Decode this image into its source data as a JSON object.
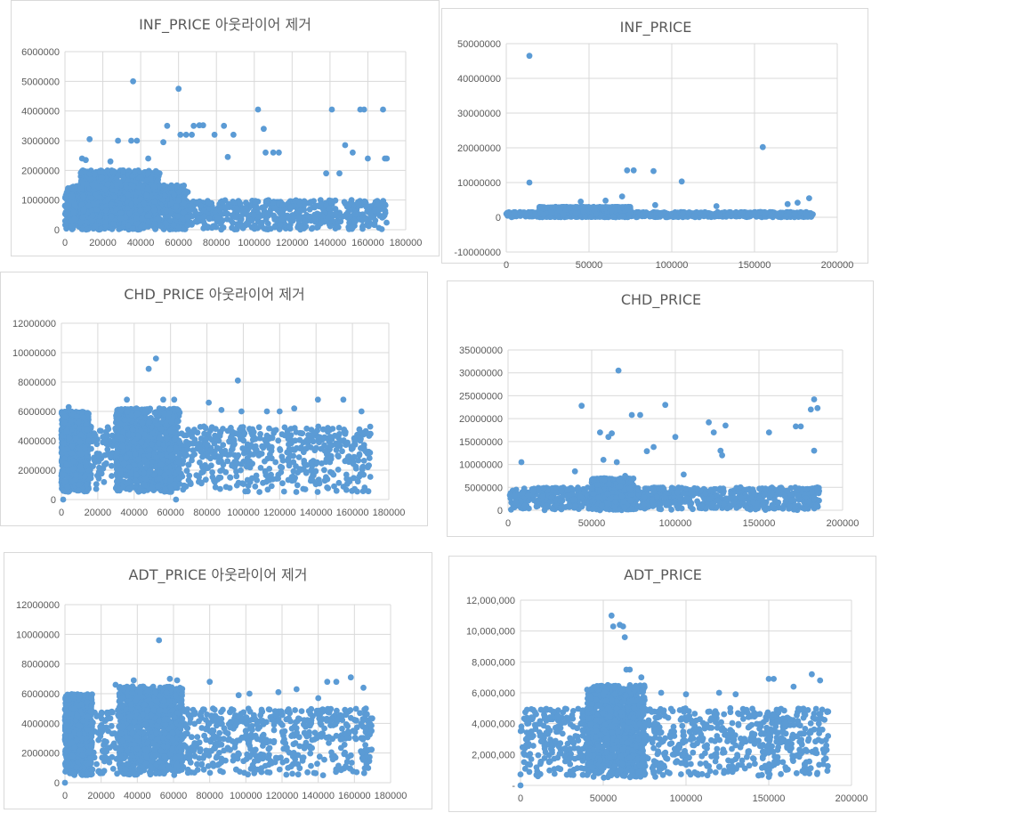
{
  "colors": {
    "marker": "#5b9bd5",
    "grid": "#d9d9d9",
    "text": "#595959",
    "border": "#d9d9d9"
  },
  "chart_data": [
    {
      "id": "inf-out",
      "type": "scatter",
      "title": "INF_PRICE 아웃라이어 제거",
      "grid": "vertical and horizontal",
      "xlim": [
        0,
        180000
      ],
      "ylim": [
        0,
        6000000
      ],
      "xticks": [
        0,
        20000,
        40000,
        60000,
        80000,
        100000,
        120000,
        140000,
        160000,
        180000
      ],
      "yticks": [
        0,
        1000000,
        2000000,
        3000000,
        4000000,
        5000000,
        6000000
      ],
      "xtick_labels": [
        "0",
        "20000",
        "40000",
        "60000",
        "80000",
        "100000",
        "120000",
        "140000",
        "160000",
        "180000"
      ],
      "ytick_labels": [
        "0",
        "1000000",
        "2000000",
        "3000000",
        "4000000",
        "5000000",
        "6000000"
      ],
      "x_max_data": 170000,
      "dense_bands": [
        {
          "x": [
            0,
            170000
          ],
          "y": [
            0,
            1000000
          ]
        },
        {
          "x": [
            0,
            65000
          ],
          "y": [
            0,
            1500000
          ]
        },
        {
          "x": [
            8000,
            50000
          ],
          "y": [
            0,
            2000000
          ]
        }
      ],
      "outliers": [
        [
          36000,
          5000000
        ],
        [
          60000,
          4750000
        ],
        [
          102000,
          4050000
        ],
        [
          141000,
          4050000
        ],
        [
          156000,
          4050000
        ],
        [
          158000,
          4050000
        ],
        [
          168000,
          4050000
        ],
        [
          105000,
          3400000
        ],
        [
          54000,
          3500000
        ],
        [
          68000,
          3500000
        ],
        [
          71000,
          3520000
        ],
        [
          73000,
          3520000
        ],
        [
          84000,
          3500000
        ],
        [
          13000,
          3050000
        ],
        [
          28000,
          3000000
        ],
        [
          35000,
          3000000
        ],
        [
          38000,
          3000000
        ],
        [
          52000,
          2950000
        ],
        [
          61000,
          3200000
        ],
        [
          64000,
          3200000
        ],
        [
          67000,
          3200000
        ],
        [
          79000,
          3200000
        ],
        [
          89000,
          3200000
        ],
        [
          148000,
          2850000
        ],
        [
          160000,
          2400000
        ],
        [
          9000,
          2400000
        ],
        [
          11000,
          2350000
        ],
        [
          24000,
          2300000
        ],
        [
          44000,
          2400000
        ],
        [
          86000,
          2450000
        ],
        [
          106000,
          2600000
        ],
        [
          110000,
          2600000
        ],
        [
          113000,
          2600000
        ],
        [
          152000,
          2600000
        ],
        [
          138000,
          1900000
        ],
        [
          145000,
          1900000
        ],
        [
          169000,
          2400000
        ],
        [
          170000,
          2400000
        ]
      ]
    },
    {
      "id": "inf-raw",
      "type": "scatter",
      "title": "INF_PRICE",
      "grid": "vertical and horizontal",
      "xlim": [
        0,
        200000
      ],
      "ylim": [
        -10000000,
        50000000
      ],
      "xticks": [
        0,
        50000,
        100000,
        150000,
        200000
      ],
      "yticks": [
        -10000000,
        0,
        10000000,
        20000000,
        30000000,
        40000000,
        50000000
      ],
      "xtick_labels": [
        "0",
        "50000",
        "100000",
        "150000",
        "200000"
      ],
      "ytick_labels": [
        "-10000000",
        "0",
        "10000000",
        "20000000",
        "30000000",
        "40000000",
        "50000000"
      ],
      "x_max_data": 186000,
      "dense_bands": [
        {
          "x": [
            0,
            186000
          ],
          "y": [
            0,
            1500000
          ]
        },
        {
          "x": [
            20000,
            75000
          ],
          "y": [
            0,
            3000000
          ]
        }
      ],
      "outliers": [
        [
          14000,
          46500000
        ],
        [
          155000,
          20200000
        ],
        [
          14000,
          10000000
        ],
        [
          106000,
          10300000
        ],
        [
          73000,
          13500000
        ],
        [
          77000,
          13500000
        ],
        [
          89000,
          13300000
        ],
        [
          70000,
          6000000
        ],
        [
          45000,
          4500000
        ],
        [
          60000,
          4800000
        ],
        [
          176000,
          4200000
        ],
        [
          183000,
          5500000
        ],
        [
          127000,
          3200000
        ],
        [
          90000,
          3500000
        ],
        [
          170000,
          3800000
        ]
      ]
    },
    {
      "id": "chd-out",
      "type": "scatter",
      "title": "CHD_PRICE 아웃라이어 제거",
      "grid": "vertical and horizontal",
      "xlim": [
        0,
        180000
      ],
      "ylim": [
        0,
        12000000
      ],
      "xticks": [
        0,
        20000,
        40000,
        60000,
        80000,
        100000,
        120000,
        140000,
        160000,
        180000
      ],
      "yticks": [
        0,
        2000000,
        4000000,
        6000000,
        8000000,
        10000000,
        12000000
      ],
      "xtick_labels": [
        "0",
        "20000",
        "40000",
        "60000",
        "80000",
        "100000",
        "120000",
        "140000",
        "160000",
        "180000"
      ],
      "ytick_labels": [
        "0",
        "2000000",
        "4000000",
        "6000000",
        "8000000",
        "10000000",
        "12000000"
      ],
      "x_max_data": 170000,
      "dense_bands": [
        {
          "x": [
            0,
            170000
          ],
          "y": [
            500000,
            5000000
          ]
        },
        {
          "x": [
            0,
            15000
          ],
          "y": [
            500000,
            6000000
          ]
        },
        {
          "x": [
            30000,
            65000
          ],
          "y": [
            500000,
            6200000
          ]
        }
      ],
      "outliers": [
        [
          52000,
          9600000
        ],
        [
          48000,
          8900000
        ],
        [
          97000,
          8100000
        ],
        [
          36000,
          6800000
        ],
        [
          56000,
          6800000
        ],
        [
          62000,
          6800000
        ],
        [
          81000,
          6600000
        ],
        [
          141000,
          6800000
        ],
        [
          155000,
          6800000
        ],
        [
          120000,
          6000000
        ],
        [
          4000,
          6300000
        ],
        [
          99000,
          6000000
        ],
        [
          113000,
          6000000
        ],
        [
          165000,
          6000000
        ],
        [
          1000,
          0
        ],
        [
          63000,
          0
        ],
        [
          128000,
          6200000
        ],
        [
          88000,
          6100000
        ]
      ]
    },
    {
      "id": "chd-raw",
      "type": "scatter",
      "title": "CHD_PRICE",
      "grid": "vertical and horizontal",
      "xlim": [
        0,
        200000
      ],
      "ylim": [
        0,
        35000000
      ],
      "xticks": [
        0,
        50000,
        100000,
        150000,
        200000
      ],
      "yticks": [
        0,
        5000000,
        10000000,
        15000000,
        20000000,
        25000000,
        30000000,
        35000000
      ],
      "xtick_labels": [
        "0",
        "50000",
        "100000",
        "150000",
        "200000"
      ],
      "ytick_labels": [
        "0",
        "5000000",
        "10000000",
        "15000000",
        "20000000",
        "25000000",
        "30000000",
        "35000000"
      ],
      "x_max_data": 186000,
      "dense_bands": [
        {
          "x": [
            0,
            186000
          ],
          "y": [
            0,
            5000000
          ]
        },
        {
          "x": [
            50000,
            75000
          ],
          "y": [
            0,
            7000000
          ]
        }
      ],
      "outliers": [
        [
          66000,
          30500000
        ],
        [
          183000,
          24200000
        ],
        [
          44000,
          22800000
        ],
        [
          94000,
          23000000
        ],
        [
          181000,
          22000000
        ],
        [
          185000,
          22300000
        ],
        [
          74000,
          20800000
        ],
        [
          79000,
          20800000
        ],
        [
          120000,
          19200000
        ],
        [
          123000,
          17000000
        ],
        [
          130000,
          18500000
        ],
        [
          156000,
          17000000
        ],
        [
          55000,
          17000000
        ],
        [
          62000,
          16800000
        ],
        [
          100000,
          16000000
        ],
        [
          60000,
          16000000
        ],
        [
          172000,
          18300000
        ],
        [
          175000,
          18300000
        ],
        [
          183000,
          13000000
        ],
        [
          87000,
          13800000
        ],
        [
          83000,
          12900000
        ],
        [
          127000,
          13000000
        ],
        [
          128000,
          12000000
        ],
        [
          57000,
          11000000
        ],
        [
          65000,
          10500000
        ],
        [
          8000,
          10500000
        ],
        [
          40000,
          8500000
        ],
        [
          105000,
          7800000
        ],
        [
          70000,
          7500000
        ]
      ]
    },
    {
      "id": "adt-out",
      "type": "scatter",
      "title": "ADT_PRICE 아웃라이어 제거",
      "grid": "vertical and horizontal",
      "xlim": [
        0,
        180000
      ],
      "ylim": [
        0,
        12000000
      ],
      "xticks": [
        0,
        20000,
        40000,
        60000,
        80000,
        100000,
        120000,
        140000,
        160000,
        180000
      ],
      "yticks": [
        0,
        2000000,
        4000000,
        6000000,
        8000000,
        10000000,
        12000000
      ],
      "xtick_labels": [
        "0",
        "20000",
        "40000",
        "60000",
        "80000",
        "100000",
        "120000",
        "140000",
        "160000",
        "180000"
      ],
      "ytick_labels": [
        "0",
        "2000000",
        "4000000",
        "6000000",
        "8000000",
        "10000000",
        "12000000"
      ],
      "x_max_data": 170000,
      "dense_bands": [
        {
          "x": [
            0,
            170000
          ],
          "y": [
            500000,
            5000000
          ]
        },
        {
          "x": [
            0,
            15000
          ],
          "y": [
            500000,
            6000000
          ]
        },
        {
          "x": [
            30000,
            65000
          ],
          "y": [
            500000,
            6500000
          ]
        }
      ],
      "outliers": [
        [
          52000,
          9600000
        ],
        [
          38000,
          6900000
        ],
        [
          58000,
          7000000
        ],
        [
          62000,
          6900000
        ],
        [
          80000,
          6800000
        ],
        [
          158000,
          7100000
        ],
        [
          150000,
          6800000
        ],
        [
          28000,
          6600000
        ],
        [
          102000,
          6000000
        ],
        [
          118000,
          6100000
        ],
        [
          128000,
          6300000
        ],
        [
          145000,
          6800000
        ],
        [
          165000,
          6400000
        ],
        [
          0,
          0
        ],
        [
          96000,
          5900000
        ],
        [
          140000,
          5700000
        ]
      ]
    },
    {
      "id": "adt-raw",
      "type": "scatter",
      "title": "ADT_PRICE",
      "grid": "vertical and horizontal",
      "xlim": [
        0,
        200000
      ],
      "ylim": [
        0,
        12000000
      ],
      "xticks": [
        0,
        50000,
        100000,
        150000,
        200000
      ],
      "yticks": [
        0,
        2000000,
        4000000,
        6000000,
        8000000,
        10000000,
        12000000
      ],
      "xtick_labels": [
        "0",
        "50000",
        "100000",
        "150000",
        "200000"
      ],
      "ytick_labels": [
        "-",
        "2,000,000",
        "4,000,000",
        "6,000,000",
        "8,000,000",
        "10,000,000",
        "12,000,000"
      ],
      "x_max_data": 186000,
      "dense_bands": [
        {
          "x": [
            0,
            186000
          ],
          "y": [
            500000,
            5000000
          ]
        },
        {
          "x": [
            40000,
            75000
          ],
          "y": [
            500000,
            6500000
          ]
        }
      ],
      "outliers": [
        [
          55000,
          11000000
        ],
        [
          56000,
          10300000
        ],
        [
          60000,
          10400000
        ],
        [
          62000,
          10300000
        ],
        [
          63000,
          9600000
        ],
        [
          64000,
          7500000
        ],
        [
          66000,
          7500000
        ],
        [
          73000,
          7000000
        ],
        [
          176000,
          7200000
        ],
        [
          150000,
          6900000
        ],
        [
          153000,
          6900000
        ],
        [
          181000,
          6800000
        ],
        [
          120000,
          6000000
        ],
        [
          130000,
          5900000
        ],
        [
          0,
          0
        ],
        [
          165000,
          6400000
        ],
        [
          100000,
          5900000
        ],
        [
          85000,
          6000000
        ]
      ]
    }
  ]
}
